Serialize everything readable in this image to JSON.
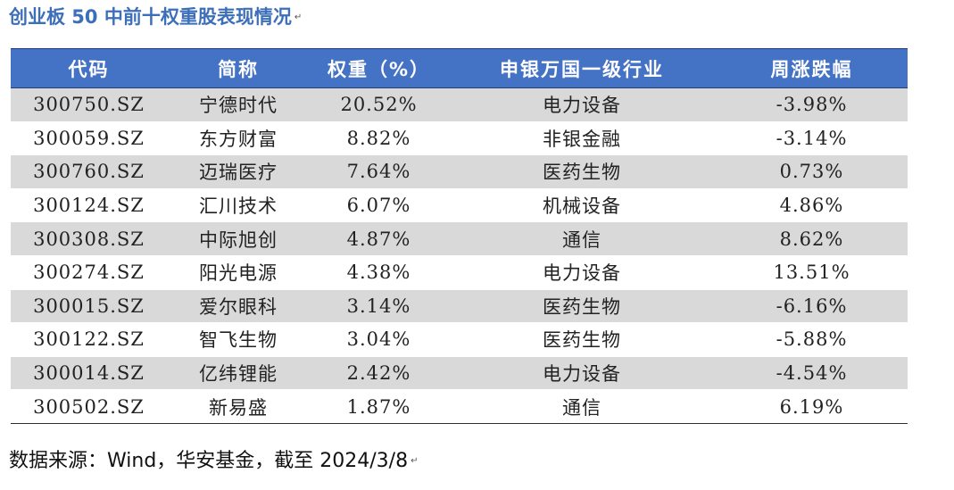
{
  "title": "创业板 50 中前十权重股表现情况",
  "headers": [
    "代码",
    "简称",
    "权重（%）",
    "申银万国一级行业",
    "周涨跌幅"
  ],
  "rows": [
    {
      "code": "300750.SZ",
      "name": "宁德时代",
      "weight": "20.52%",
      "industry": "电力设备",
      "change": "-3.98%"
    },
    {
      "code": "300059.SZ",
      "name": "东方财富",
      "weight": "8.82%",
      "industry": "非银金融",
      "change": "-3.14%"
    },
    {
      "code": "300760.SZ",
      "name": "迈瑞医疗",
      "weight": "7.64%",
      "industry": "医药生物",
      "change": "0.73%"
    },
    {
      "code": "300124.SZ",
      "name": "汇川技术",
      "weight": "6.07%",
      "industry": "机械设备",
      "change": "4.86%"
    },
    {
      "code": "300308.SZ",
      "name": "中际旭创",
      "weight": "4.87%",
      "industry": "通信",
      "change": "8.62%"
    },
    {
      "code": "300274.SZ",
      "name": "阳光电源",
      "weight": "4.38%",
      "industry": "电力设备",
      "change": "13.51%"
    },
    {
      "code": "300015.SZ",
      "name": "爱尔眼科",
      "weight": "3.14%",
      "industry": "医药生物",
      "change": "-6.16%"
    },
    {
      "code": "300122.SZ",
      "name": "智飞生物",
      "weight": "3.04%",
      "industry": "医药生物",
      "change": "-5.88%"
    },
    {
      "code": "300014.SZ",
      "name": "亿纬锂能",
      "weight": "2.42%",
      "industry": "电力设备",
      "change": "-4.54%"
    },
    {
      "code": "300502.SZ",
      "name": "新易盛",
      "weight": "1.87%",
      "industry": "通信",
      "change": "6.19%"
    }
  ],
  "source": "数据来源：Wind，华安基金，截至 2024/3/8",
  "colors": {
    "title": "#3d6fb8",
    "header_bg": "#4472c4",
    "row_alt_bg": "#d9d9d9"
  }
}
